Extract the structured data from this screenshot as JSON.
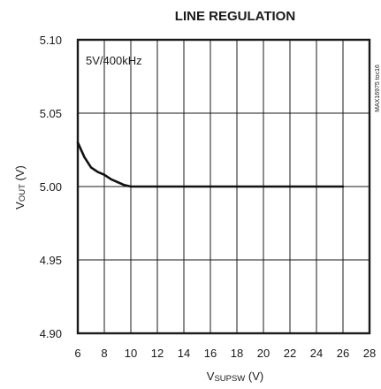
{
  "chart_data": {
    "type": "line",
    "title": "LINE REGULATION",
    "xlabel": {
      "main": "V",
      "sub": "SUPSW",
      "unit": " (V)"
    },
    "ylabel": {
      "main": "V",
      "sub": "OUT",
      "unit": " (V)"
    },
    "xlim": [
      6,
      28
    ],
    "ylim": [
      4.9,
      5.1
    ],
    "xticks": [
      6,
      8,
      10,
      12,
      14,
      16,
      18,
      20,
      22,
      24,
      26,
      28
    ],
    "xtick_labels": [
      "6",
      "8",
      "10",
      "12",
      "14",
      "16",
      "18",
      "20",
      "22",
      "24",
      "26",
      "28"
    ],
    "yticks": [
      4.9,
      4.95,
      5.0,
      5.05,
      5.1
    ],
    "ytick_labels": [
      "4.90",
      "4.95",
      "5.00",
      "5.05",
      "5.10"
    ],
    "grid": true,
    "annotation": "5V/400kHz",
    "side_code": "MAX16975 toc16",
    "series": [
      {
        "x": [
          6,
          6.5,
          7,
          7.5,
          8,
          8.5,
          9,
          9.5,
          10,
          12,
          14,
          16,
          18,
          20,
          22,
          24,
          26
        ],
        "y": [
          5.03,
          5.02,
          5.013,
          5.01,
          5.008,
          5.005,
          5.003,
          5.001,
          5.0,
          5.0,
          5.0,
          5.0,
          5.0,
          5.0,
          5.0,
          5.0,
          5.0
        ]
      }
    ]
  }
}
